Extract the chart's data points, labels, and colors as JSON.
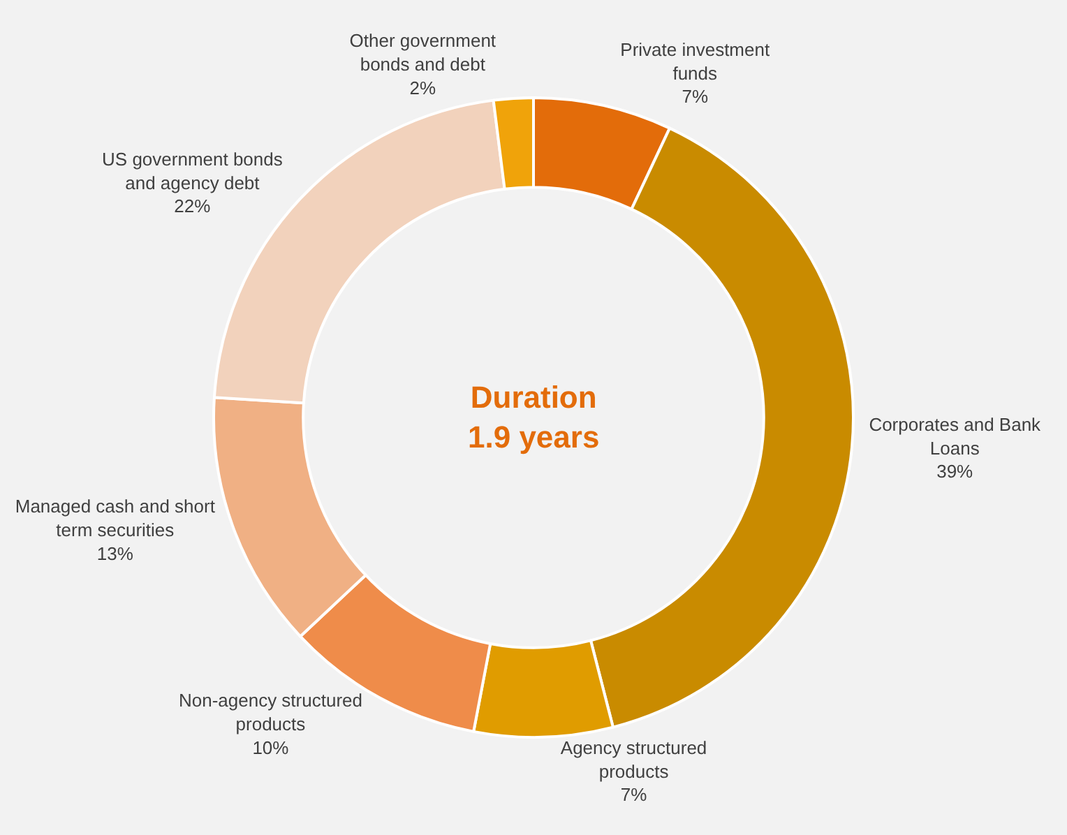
{
  "chart_data": {
    "type": "donut",
    "categories": [
      "Private investment\nfunds",
      "Corporates and Bank\nLoans",
      "Agency structured\nproducts",
      "Non-agency structured\nproducts",
      "Managed cash and short\nterm securities",
      "US government bonds\nand agency debt",
      "Other government\nbonds and debt"
    ],
    "values": [
      7,
      39,
      7,
      10,
      13,
      22,
      2
    ],
    "value_labels": [
      "7%",
      "39%",
      "7%",
      "10%",
      "13%",
      "22%",
      "2%"
    ],
    "colors": [
      "#e36c0a",
      "#c98b00",
      "#e09c00",
      "#ef8c4a",
      "#f0b084",
      "#f2d2bc",
      "#f0a30a"
    ],
    "annotations": [
      "Duration\n1.9 years"
    ],
    "legend": false
  }
}
